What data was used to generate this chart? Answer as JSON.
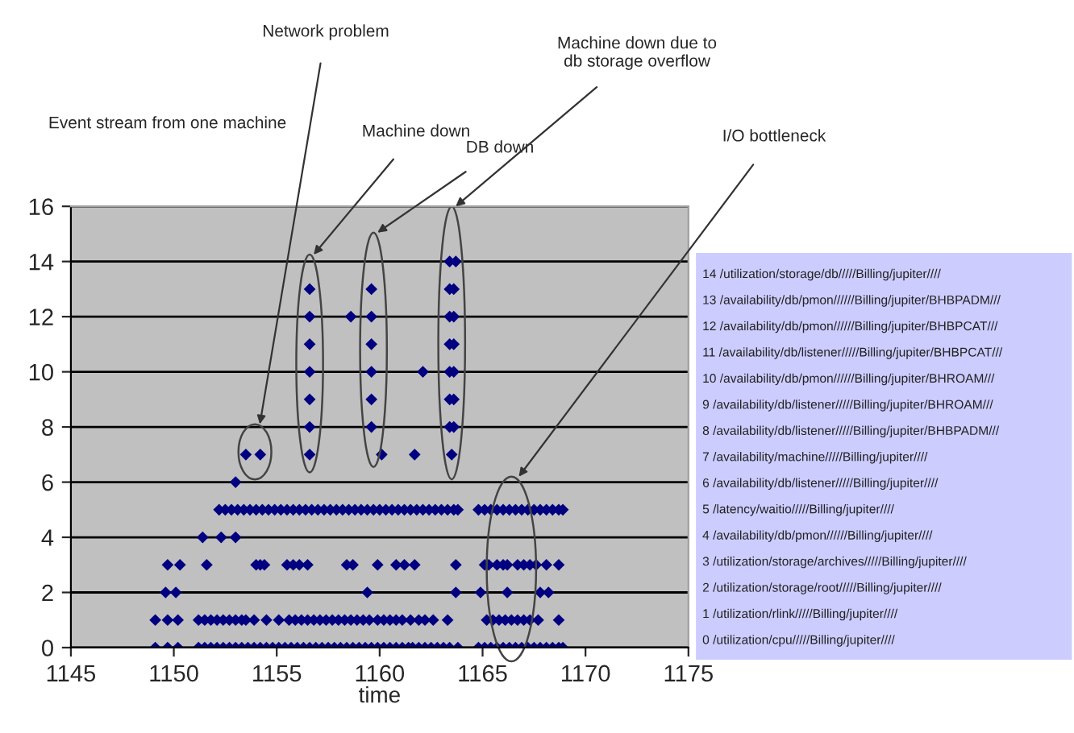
{
  "chart_data": {
    "type": "scatter",
    "title": "Event stream from one machine",
    "xlabel": "time",
    "xlim": [
      1145,
      1175
    ],
    "xticks": [
      1145,
      1150,
      1155,
      1160,
      1165,
      1170,
      1175
    ],
    "ylim": [
      0,
      16
    ],
    "yticks": [
      0,
      2,
      4,
      6,
      8,
      10,
      12,
      14,
      16
    ],
    "grid": "y",
    "marker": "diamond",
    "legend": false,
    "series": [
      {
        "color": "#000080",
        "x": [
          1149.1,
          1149.7,
          1150.2,
          1151.2,
          1151.5,
          1151.8,
          1152.1,
          1152.4,
          1152.7,
          1153.0,
          1153.3,
          1153.6,
          1153.9,
          1154.2,
          1154.5,
          1154.8,
          1155.1,
          1155.4,
          1155.7,
          1156.0,
          1156.3,
          1156.6,
          1156.9,
          1157.2,
          1157.5,
          1157.8,
          1158.1,
          1158.4,
          1158.7,
          1159.0,
          1159.3,
          1159.6,
          1159.9,
          1160.2,
          1160.5,
          1160.8,
          1161.1,
          1161.4,
          1161.6,
          1161.9,
          1162.2,
          1162.5,
          1162.8,
          1163.1,
          1163.4,
          1163.8,
          1164.8,
          1165.1,
          1165.4,
          1165.7,
          1166.0,
          1166.3,
          1166.6,
          1166.9,
          1167.2,
          1167.5,
          1167.8,
          1168.1,
          1168.4,
          1168.7,
          1168.9
        ],
        "values": [
          0,
          0,
          0,
          0,
          0,
          0,
          0,
          0,
          0,
          0,
          0,
          0,
          0,
          0,
          0,
          0,
          0,
          0,
          0,
          0,
          0,
          0,
          0,
          0,
          0,
          0,
          0,
          0,
          0,
          0,
          0,
          0,
          0,
          0,
          0,
          0,
          0,
          0,
          0,
          0,
          0,
          0,
          0,
          0,
          0,
          0,
          0,
          0,
          0,
          0,
          0,
          0,
          0,
          0,
          0,
          0,
          0,
          0,
          0,
          0,
          0
        ]
      },
      {
        "color": "#000080",
        "x": [
          1149.1,
          1149.7,
          1150.2,
          1151.2,
          1151.5,
          1151.8,
          1152.1,
          1152.4,
          1152.7,
          1153.0,
          1153.3,
          1153.5,
          1153.9,
          1154.5,
          1155.1,
          1155.6,
          1155.9,
          1156.2,
          1156.5,
          1156.8,
          1157.1,
          1157.4,
          1157.7,
          1158.0,
          1158.3,
          1158.6,
          1158.9,
          1159.2,
          1159.5,
          1159.9,
          1160.2,
          1160.5,
          1160.8,
          1161.1,
          1161.5,
          1161.9,
          1162.2,
          1162.6,
          1163.3,
          1165.2,
          1165.5,
          1165.8,
          1166.1,
          1166.4,
          1166.7,
          1167.0,
          1167.3,
          1167.7,
          1168.7
        ],
        "values": [
          1,
          1,
          1,
          1,
          1,
          1,
          1,
          1,
          1,
          1,
          1,
          1,
          1,
          1,
          1,
          1,
          1,
          1,
          1,
          1,
          1,
          1,
          1,
          1,
          1,
          1,
          1,
          1,
          1,
          1,
          1,
          1,
          1,
          1,
          1,
          1,
          1,
          1,
          1,
          1,
          1,
          1,
          1,
          1,
          1,
          1,
          1,
          1,
          1
        ]
      },
      {
        "color": "#000080",
        "x": [
          1149.6,
          1150.1,
          1159.4,
          1163.7,
          1164.9,
          1166.2,
          1167.8,
          1168.2
        ],
        "values": [
          2,
          2,
          2,
          2,
          2,
          2,
          2,
          2
        ]
      },
      {
        "color": "#000080",
        "x": [
          1149.7,
          1150.3,
          1151.6,
          1154.0,
          1154.2,
          1154.4,
          1155.5,
          1155.8,
          1156.1,
          1156.5,
          1158.4,
          1158.7,
          1159.9,
          1160.8,
          1161.2,
          1161.7,
          1163.7,
          1165.1,
          1165.3,
          1165.7,
          1166.0,
          1166.2,
          1166.7,
          1167.0,
          1167.3,
          1167.6,
          1168.1,
          1168.7
        ],
        "values": [
          3,
          3,
          3,
          3,
          3,
          3,
          3,
          3,
          3,
          3,
          3,
          3,
          3,
          3,
          3,
          3,
          3,
          3,
          3,
          3,
          3,
          3,
          3,
          3,
          3,
          3,
          3,
          3
        ]
      },
      {
        "color": "#000080",
        "x": [
          1151.4,
          1152.3,
          1153.0
        ],
        "values": [
          4,
          4,
          4
        ]
      },
      {
        "color": "#000080",
        "x": [
          1152.2,
          1152.5,
          1152.8,
          1153.1,
          1153.4,
          1153.7,
          1154.0,
          1154.3,
          1154.6,
          1154.9,
          1155.2,
          1155.5,
          1155.8,
          1156.1,
          1156.4,
          1156.7,
          1157.0,
          1157.3,
          1157.6,
          1157.9,
          1158.2,
          1158.5,
          1158.8,
          1159.1,
          1159.4,
          1159.7,
          1160.0,
          1160.3,
          1160.6,
          1160.9,
          1161.2,
          1161.5,
          1161.8,
          1162.1,
          1162.4,
          1162.7,
          1163.0,
          1163.3,
          1163.6,
          1163.8,
          1164.8,
          1165.1,
          1165.4,
          1165.7,
          1166.0,
          1166.3,
          1166.6,
          1166.9,
          1167.2,
          1167.5,
          1167.8,
          1168.1,
          1168.4,
          1168.7,
          1168.9
        ],
        "values": [
          5,
          5,
          5,
          5,
          5,
          5,
          5,
          5,
          5,
          5,
          5,
          5,
          5,
          5,
          5,
          5,
          5,
          5,
          5,
          5,
          5,
          5,
          5,
          5,
          5,
          5,
          5,
          5,
          5,
          5,
          5,
          5,
          5,
          5,
          5,
          5,
          5,
          5,
          5,
          5,
          5,
          5,
          5,
          5,
          5,
          5,
          5,
          5,
          5,
          5,
          5,
          5,
          5,
          5,
          5
        ]
      },
      {
        "color": "#000080",
        "x": [
          1153.0
        ],
        "values": [
          6
        ]
      },
      {
        "color": "#000080",
        "x": [
          1153.5,
          1154.2,
          1156.6,
          1160.1,
          1161.7,
          1163.5
        ],
        "values": [
          7,
          7,
          7,
          7,
          7,
          7
        ]
      },
      {
        "color": "#000080",
        "x": [
          1156.6,
          1159.6,
          1163.4,
          1163.6
        ],
        "values": [
          8,
          8,
          8,
          8
        ]
      },
      {
        "color": "#000080",
        "x": [
          1156.6,
          1159.6,
          1163.4,
          1163.6
        ],
        "values": [
          9,
          9,
          9,
          9
        ]
      },
      {
        "color": "#000080",
        "x": [
          1156.6,
          1159.6,
          1162.1,
          1163.4,
          1163.6
        ],
        "values": [
          10,
          10,
          10,
          10,
          10
        ]
      },
      {
        "color": "#000080",
        "x": [
          1156.6,
          1159.6,
          1163.4,
          1163.6
        ],
        "values": [
          11,
          11,
          11,
          11
        ]
      },
      {
        "color": "#000080",
        "x": [
          1156.6,
          1158.6,
          1159.6,
          1163.4,
          1163.6
        ],
        "values": [
          12,
          12,
          12,
          12,
          12
        ]
      },
      {
        "color": "#000080",
        "x": [
          1156.6,
          1159.6,
          1163.4,
          1163.6
        ],
        "values": [
          13,
          13,
          13,
          13
        ]
      },
      {
        "color": "#000080",
        "x": [
          1163.4,
          1163.7
        ],
        "values": [
          14,
          14
        ]
      }
    ],
    "annotations": [
      "Network problem",
      "Machine down",
      "DB down",
      "Machine down due to db storage overflow",
      "I/O bottleneck",
      "14 /utilization/storage/db/////Billing/jupiter////",
      "13 /availability/db/pmon//////Billing/jupiter/BHBPADM///",
      "12 /availability/db/pmon//////Billing/jupiter/BHBPCAT///",
      "11 /availability/db/listener/////Billing/jupiter/BHBPCAT///",
      "10 /availability/db/pmon//////Billing/jupiter/BHROAM///",
      "9 /availability/db/listener/////Billing/jupiter/BHROAM///",
      "8 /availability/db/listener/////Billing/jupiter/BHBPADM///",
      "7 /availability/machine/////Billing/jupiter////",
      "6 /availability/db/listener/////Billing/jupiter////",
      "5 /latency/waitio/////Billing/jupiter////",
      "4 /availability/db/pmon//////Billing/jupiter////",
      "3 /utilization/storage/archives/////Billing/jupiter////",
      "2 /utilization/storage/root/////Billing/jupiter////",
      "1 /utilization/rlink/////Billing/jupiter////",
      "0 /utilization/cpu/////Billing/jupiter////"
    ]
  }
}
